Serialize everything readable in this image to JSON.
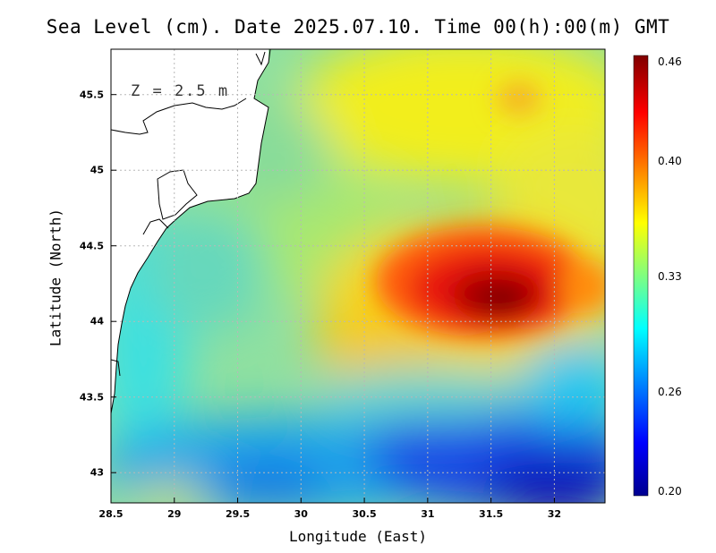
{
  "title": "Sea Level (cm). Date 2025.07.10. Time 00(h):00(m) GMT",
  "depth_label": "Z = 2.5 m",
  "chart_data": {
    "type": "heatmap",
    "variable": "Sea Level",
    "units": "cm",
    "title": "Sea Level (cm). Date 2025.07.10. Time 00(h):00(m) GMT",
    "xlabel": "Longitude (East)",
    "ylabel": "Latitude (North)",
    "xlim": [
      28.5,
      32.4
    ],
    "ylim": [
      42.8,
      45.8
    ],
    "x_ticks": [
      "28.5",
      "29",
      "29.5",
      "30",
      "30.5",
      "31",
      "31.5",
      "32"
    ],
    "y_ticks": [
      "43",
      "43.5",
      "44",
      "44.5",
      "45",
      "45.5"
    ],
    "grid": true,
    "colorbar": {
      "ticks": [
        "0.46",
        "0.40",
        "0.33",
        "0.26",
        "0.20"
      ],
      "range": [
        0.2,
        0.46
      ],
      "colormap": [
        "#00008f",
        "#0000ff",
        "#00ffff",
        "#ffff00",
        "#ff0000",
        "#800000"
      ]
    },
    "features": [
      {
        "label": "maximum",
        "lon": 31.55,
        "lat": 44.15,
        "value": 0.46
      },
      {
        "label": "minimum",
        "lon": 32.0,
        "lat": 42.9,
        "value": 0.2
      }
    ]
  }
}
